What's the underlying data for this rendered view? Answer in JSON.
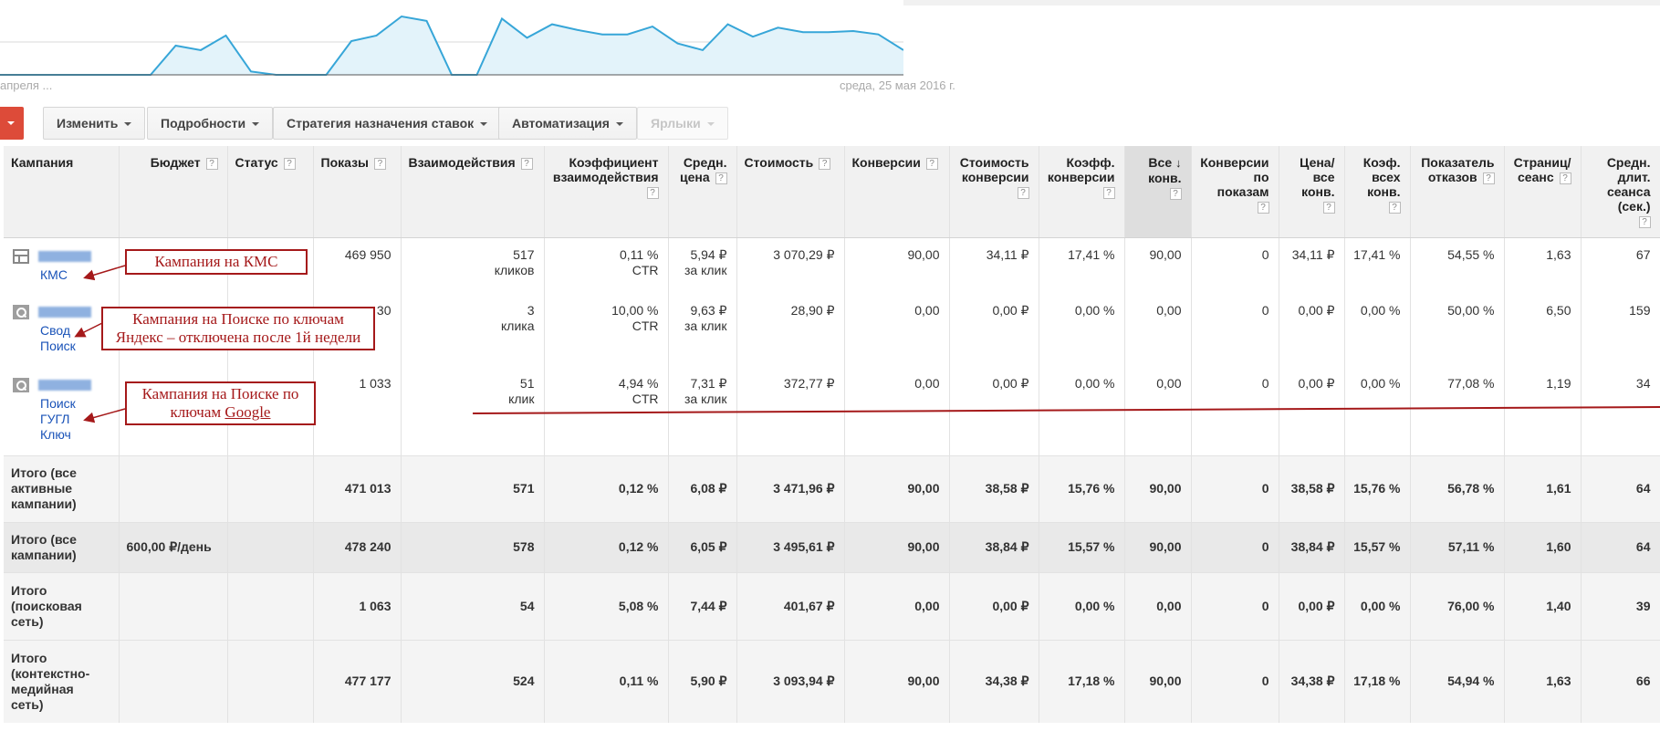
{
  "chart": {
    "date_left": "апреля ...",
    "date_right": "среда, 25 мая 2016 г."
  },
  "toolbar": {
    "change": "Изменить",
    "details": "Подробности",
    "bid_strategy": "Стратегия назначения ставок",
    "automation": "Автоматизация",
    "labels": "Ярлыки"
  },
  "columns": {
    "campaign": "Кампания",
    "budget": "Бюджет",
    "status": "Статус",
    "impressions": "Показы",
    "interactions": "Взаимодействия",
    "interaction_rate_1": "Коэффициент",
    "interaction_rate_2": "взаимодействия",
    "avg_cost_1": "Средн.",
    "avg_cost_2": "цена",
    "cost": "Стоимость",
    "conversions": "Конверсии",
    "cost_conv_1": "Стоимость",
    "cost_conv_2": "конверсии",
    "conv_rate_1": "Коэфф.",
    "conv_rate_2": "конверсии",
    "all_conv_1": "Все",
    "all_conv_2": "конв.",
    "view_conv_1": "Конверсии",
    "view_conv_2": "по",
    "view_conv_3": "показам",
    "cost_all_conv_1": "Цена/",
    "cost_all_conv_2": "все",
    "cost_all_conv_3": "конв.",
    "all_conv_rate_1": "Коэф.",
    "all_conv_rate_2": "всех",
    "all_conv_rate_3": "конв.",
    "bounce_1": "Показатель",
    "bounce_2": "отказов",
    "pages_1": "Страниц/",
    "pages_2": "сеанс",
    "duration_1": "Средн.",
    "duration_2": "длит.",
    "duration_3": "сеанса",
    "duration_4": "(сек.)",
    "help": "?",
    "sort_arrow": "↓"
  },
  "rows": [
    {
      "name": [
        "КМС"
      ],
      "impressions": "469 950",
      "interactions": "517",
      "interactions_unit": "кликов",
      "rate": "0,11 %",
      "rate_unit": "CTR",
      "avg_cost": "5,94 ₽",
      "avg_cost_unit": "за клик",
      "cost": "3 070,29 ₽",
      "conversions": "90,00",
      "cost_conv": "34,11 ₽",
      "conv_rate": "17,41 %",
      "all_conv": "90,00",
      "view_conv": "0",
      "cost_all_conv": "34,11 ₽",
      "all_conv_rate": "17,41 %",
      "bounce": "54,55 %",
      "pages": "1,63",
      "duration": "67"
    },
    {
      "name": [
        "Свод",
        "Поиск"
      ],
      "impressions": "30",
      "interactions": "3",
      "interactions_unit": "клика",
      "rate": "10,00 %",
      "rate_unit": "CTR",
      "avg_cost": "9,63 ₽",
      "avg_cost_unit": "за клик",
      "cost": "28,90 ₽",
      "conversions": "0,00",
      "cost_conv": "0,00 ₽",
      "conv_rate": "0,00 %",
      "all_conv": "0,00",
      "view_conv": "0",
      "cost_all_conv": "0,00 ₽",
      "all_conv_rate": "0,00 %",
      "bounce": "50,00 %",
      "pages": "6,50",
      "duration": "159"
    },
    {
      "name": [
        "Поиск",
        "ГУГЛ",
        "Ключ"
      ],
      "impressions": "1 033",
      "interactions": "51",
      "interactions_unit": "клик",
      "rate": "4,94 %",
      "rate_unit": "CTR",
      "avg_cost": "7,31 ₽",
      "avg_cost_unit": "за клик",
      "cost": "372,77 ₽",
      "conversions": "0,00",
      "cost_conv": "0,00 ₽",
      "conv_rate": "0,00 %",
      "all_conv": "0,00",
      "view_conv": "0",
      "cost_all_conv": "0,00 ₽",
      "all_conv_rate": "0,00 %",
      "bounce": "77,08 %",
      "pages": "1,19",
      "duration": "34"
    }
  ],
  "totals": [
    {
      "label": [
        "Итого (все",
        "активные",
        "кампании)"
      ],
      "budget": "",
      "impressions": "471 013",
      "interactions": "571",
      "rate": "0,12 %",
      "avg_cost": "6,08 ₽",
      "cost": "3 471,96 ₽",
      "conversions": "90,00",
      "cost_conv": "38,58 ₽",
      "conv_rate": "15,76 %",
      "all_conv": "90,00",
      "view_conv": "0",
      "cost_all_conv": "38,58 ₽",
      "all_conv_rate": "15,76 %",
      "bounce": "56,78 %",
      "pages": "1,61",
      "duration": "64"
    },
    {
      "label": [
        "Итого (все",
        "кампании)"
      ],
      "budget": "600,00 ₽/день",
      "impressions": "478 240",
      "interactions": "578",
      "rate": "0,12 %",
      "avg_cost": "6,05 ₽",
      "cost": "3 495,61 ₽",
      "conversions": "90,00",
      "cost_conv": "38,84 ₽",
      "conv_rate": "15,57 %",
      "all_conv": "90,00",
      "view_conv": "0",
      "cost_all_conv": "38,84 ₽",
      "all_conv_rate": "15,57 %",
      "bounce": "57,11 %",
      "pages": "1,60",
      "duration": "64"
    },
    {
      "label": [
        "Итого",
        "(поисковая",
        "сеть)"
      ],
      "budget": "",
      "impressions": "1 063",
      "interactions": "54",
      "rate": "5,08 %",
      "avg_cost": "7,44 ₽",
      "cost": "401,67 ₽",
      "conversions": "0,00",
      "cost_conv": "0,00 ₽",
      "conv_rate": "0,00 %",
      "all_conv": "0,00",
      "view_conv": "0",
      "cost_all_conv": "0,00 ₽",
      "all_conv_rate": "0,00 %",
      "bounce": "76,00 %",
      "pages": "1,40",
      "duration": "39"
    },
    {
      "label": [
        "Итого",
        "(контекстно-",
        "медийная",
        "сеть)"
      ],
      "budget": "",
      "impressions": "477 177",
      "interactions": "524",
      "rate": "0,11 %",
      "avg_cost": "5,90 ₽",
      "cost": "3 093,94 ₽",
      "conversions": "90,00",
      "cost_conv": "34,38 ₽",
      "conv_rate": "17,18 %",
      "all_conv": "90,00",
      "view_conv": "0",
      "cost_all_conv": "34,38 ₽",
      "all_conv_rate": "17,18 %",
      "bounce": "54,94 %",
      "pages": "1,63",
      "duration": "66"
    }
  ],
  "annotations": {
    "kms": "Кампания на КМС",
    "yandex_1": "Кампания на Поиске по ключам",
    "yandex_2": "Яндекс – отключена после 1й недели",
    "google_1": "Кампания на Поиске по",
    "google_2": "ключам",
    "google_3": "Google"
  },
  "colors": {
    "chart_line": "#37a6d8",
    "chart_fill": "#e3f3fa",
    "link": "#1a53b8",
    "annotation": "#a5191a",
    "primary_button": "#dd4b39"
  },
  "chart_series": [
    0,
    0,
    0,
    0,
    0,
    0,
    0,
    26,
    22,
    35,
    3,
    0,
    0,
    0,
    30,
    35,
    52,
    48,
    0,
    0,
    50,
    33,
    45,
    40,
    36,
    36,
    43,
    28,
    22,
    45,
    34,
    42,
    38,
    38,
    39,
    36,
    22
  ]
}
